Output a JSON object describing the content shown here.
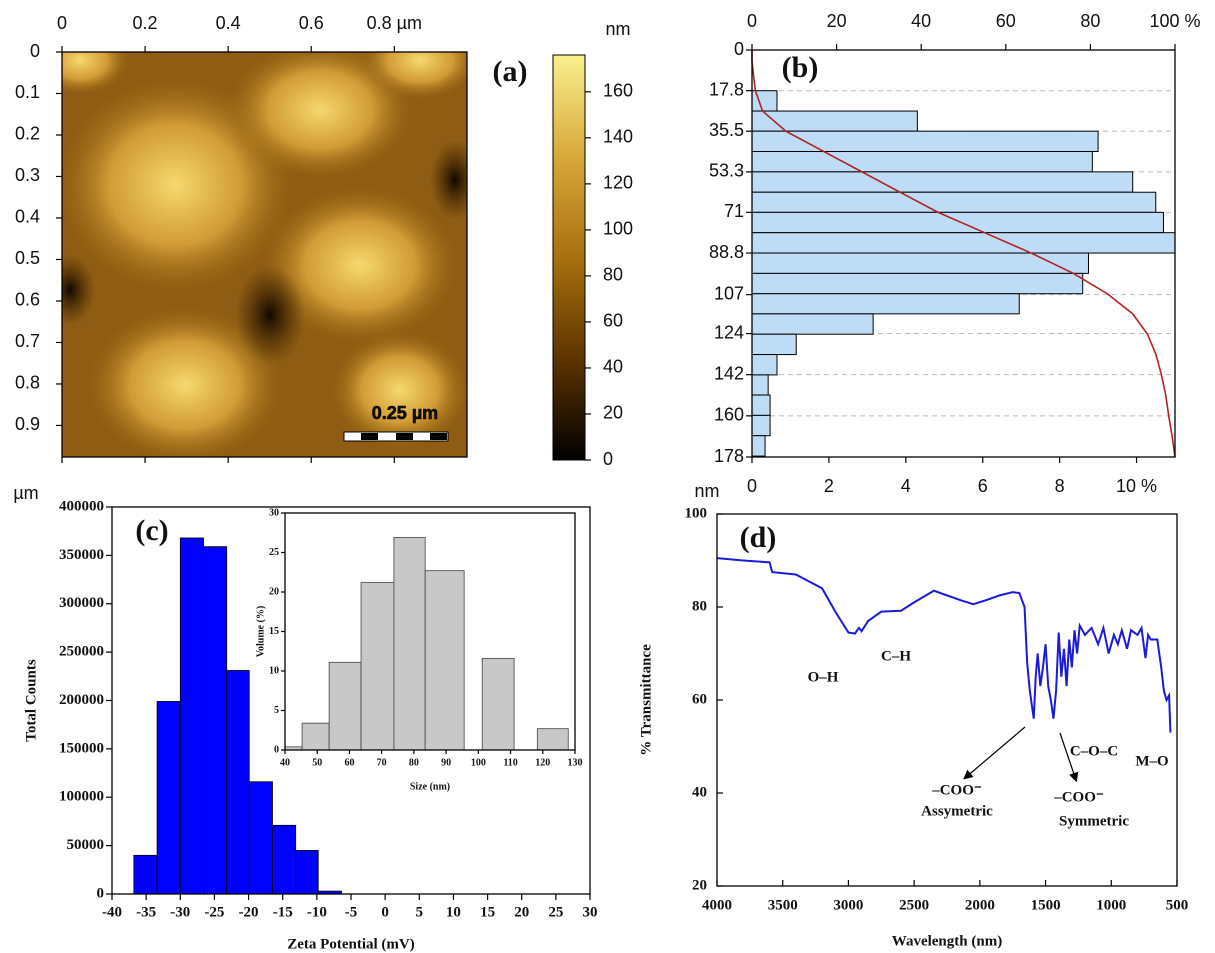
{
  "chart_data": [
    {
      "type": "image",
      "label": "(a)",
      "xlim": [
        0,
        0.975
      ],
      "xticks": [
        0,
        0.2,
        0.4,
        0.6,
        {
          "value": 0.8,
          "label": "0.8 µm"
        }
      ],
      "ylim": [
        0,
        0.976
      ],
      "yticks": [
        0,
        0.1,
        0.2,
        0.3,
        0.4,
        0.5,
        0.6,
        0.7,
        0.8,
        0.9
      ],
      "y_unit": "µm",
      "colorbar": {
        "label": "nm",
        "zlim": [
          0,
          176
        ],
        "ticks": [
          0,
          20,
          40,
          60,
          80,
          100,
          120,
          140,
          160
        ],
        "colors": [
          "#000000",
          "#5e3400",
          "#a8700f",
          "#d9a83a",
          "#faf08e"
        ]
      },
      "scale_bar": "0.25 µm"
    },
    {
      "type": "histogram",
      "orientation": "horizontal",
      "label": "(b)",
      "y_unit": "nm",
      "bins": [
        17.8,
        26.7,
        35.5,
        44.4,
        53.3,
        62.2,
        71,
        79.9,
        88.8,
        97.7,
        106.6,
        115.4,
        124.3,
        133.2,
        142.1,
        150.9,
        159.8,
        168.7,
        177.6
      ],
      "values": [
        0.65,
        4.3,
        9.0,
        8.85,
        9.9,
        10.5,
        10.7,
        11.0,
        8.75,
        8.6,
        6.95,
        3.15,
        1.15,
        0.65,
        0.42,
        0.47,
        0.47,
        0.34
      ],
      "color": "#bfdcf7",
      "xlim": [
        0,
        11
      ],
      "xticks": [
        0,
        2,
        4,
        6,
        8,
        {
          "value": 10,
          "label": "10 %"
        }
      ],
      "x2lim": [
        0,
        100
      ],
      "x2ticks": [
        0,
        20,
        40,
        60,
        80,
        {
          "value": 100,
          "label": "100 %"
        }
      ],
      "ylim": [
        0,
        178
      ],
      "yticks": [
        0,
        17.8,
        35.5,
        53.3,
        71,
        88.8,
        107,
        124,
        142,
        160,
        178
      ],
      "grid": true,
      "cumulative": {
        "color": "#b22222",
        "axis": "x2",
        "y": [
          0,
          5,
          10,
          17.8,
          26.7,
          35.5,
          44.4,
          53.3,
          62.2,
          71,
          79.9,
          88.8,
          97.7,
          106.6,
          115.4,
          124.3,
          133.2,
          142.1,
          150.9,
          159.8,
          168.7,
          178
        ],
        "values": [
          0,
          0,
          0.3,
          0.8,
          2.5,
          8,
          17,
          26,
          35,
          44,
          55,
          66,
          76,
          84,
          90,
          93.5,
          95.5,
          96.8,
          97.8,
          98.5,
          99.3,
          100
        ]
      }
    },
    {
      "type": "histogram",
      "label": "(c)",
      "xlabel": "Zeta Potential (mV)",
      "ylabel": "Total Counts",
      "bins": [
        -36.8,
        -33.4,
        -30.0,
        -26.6,
        -23.2,
        -19.9,
        -16.5,
        -13.1,
        -9.8,
        -6.4
      ],
      "values": [
        40000,
        199000,
        368000,
        359000,
        231000,
        116000,
        71000,
        45000,
        3000
      ],
      "color": "#0000ff",
      "xlim": [
        -40,
        30
      ],
      "xticks": [
        -40,
        -35,
        -30,
        -25,
        -20,
        -15,
        -10,
        -5,
        0,
        5,
        10,
        15,
        20,
        25,
        30
      ],
      "ylim": [
        0,
        400000
      ],
      "yticks": [
        0,
        50000,
        100000,
        150000,
        200000,
        250000,
        300000,
        350000,
        400000
      ]
    },
    {
      "type": "histogram",
      "xlabel": "Size (nm)",
      "ylabel": "Volume (%)",
      "bins": [
        40,
        45.3,
        53.7,
        63.6,
        73.8,
        83.5,
        95.6,
        101.2,
        111.1,
        118.3,
        127.9
      ],
      "values": [
        0.4,
        3.4,
        11.1,
        21.2,
        26.9,
        22.7,
        null,
        11.6,
        null,
        2.7
      ],
      "color": "#c8c8c8",
      "xlim": [
        40,
        130
      ],
      "xticks": [
        40,
        50,
        60,
        70,
        80,
        90,
        100,
        110,
        120,
        130
      ],
      "ylim": [
        0,
        30
      ],
      "yticks": [
        0,
        5,
        10,
        15,
        20,
        25,
        30
      ]
    },
    {
      "type": "line",
      "label": "(d)",
      "xlabel": "Wavelength (nm)",
      "ylabel": "% Transmittance",
      "color": "#1a1ad8",
      "x": [
        4000,
        3800,
        3600,
        3580,
        3400,
        3200,
        3100,
        3000,
        2950,
        2920,
        2900,
        2850,
        2750,
        2600,
        2500,
        2350,
        2250,
        2150,
        2050,
        1950,
        1850,
        1750,
        1700,
        1660,
        1640,
        1620,
        1600,
        1590,
        1575,
        1560,
        1540,
        1520,
        1500,
        1480,
        1460,
        1440,
        1420,
        1400,
        1380,
        1360,
        1340,
        1320,
        1300,
        1280,
        1260,
        1240,
        1200,
        1150,
        1100,
        1060,
        1020,
        980,
        950,
        920,
        880,
        850,
        800,
        770,
        740,
        720,
        700,
        650,
        620,
        600,
        580,
        560,
        550
      ],
      "values": [
        90.5,
        90,
        89.6,
        87.5,
        87,
        84,
        79,
        74.5,
        74.3,
        75.5,
        74.8,
        77,
        79,
        79.2,
        81,
        83.5,
        82.5,
        81.5,
        80.6,
        81.5,
        82.5,
        83.2,
        83,
        80,
        68,
        62,
        58,
        56,
        65,
        70,
        63,
        67,
        72,
        63,
        60,
        56,
        62,
        74.5,
        65,
        71,
        63,
        73,
        67,
        75,
        70,
        76,
        74,
        75.5,
        72,
        75.5,
        70,
        74,
        72,
        75,
        71,
        75,
        74,
        75.5,
        69,
        74,
        73,
        73,
        67,
        62,
        60,
        61,
        53
      ],
      "xlim": [
        4000,
        500
      ],
      "xticks": [
        4000,
        3500,
        3000,
        2500,
        2000,
        1500,
        1000,
        500
      ],
      "ylim": [
        20,
        100
      ],
      "yticks": [
        20,
        40,
        60,
        80,
        100
      ],
      "annotations": [
        "O–H",
        "C–H",
        "–COO⁻",
        "Assymetric",
        "C–O–C",
        "–COO⁻",
        "Symmetric",
        "M–O"
      ]
    }
  ]
}
